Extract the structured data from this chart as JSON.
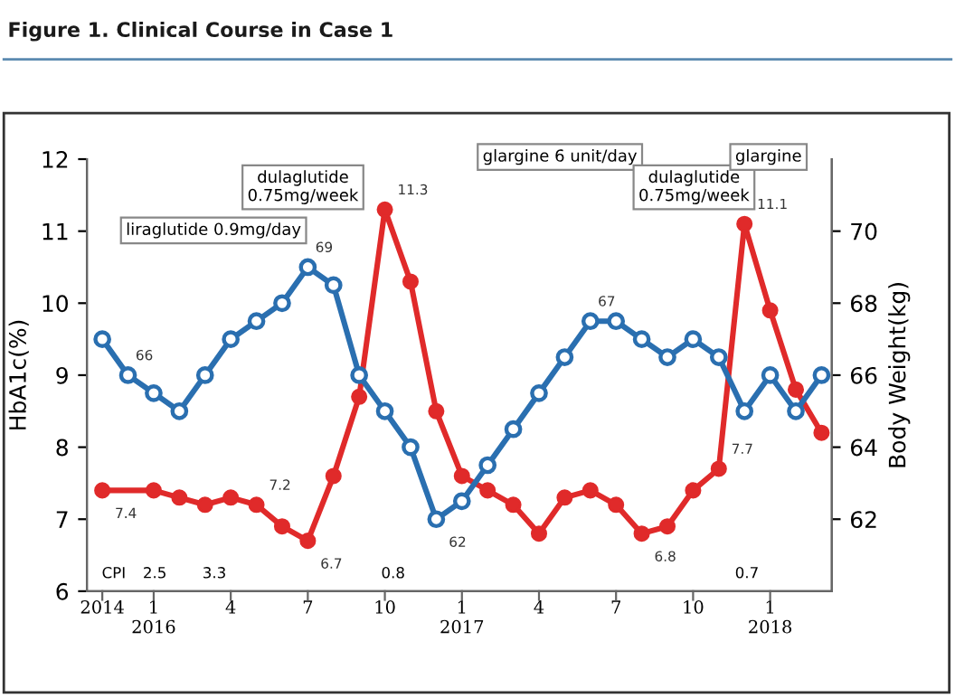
{
  "chart_data": {
    "type": "line",
    "title": "Figure 1. Clinical Course in Case 1",
    "ylabel": "HbA1c(%)",
    "y2label": "Body Weight(kg)",
    "categories": [
      "2014",
      null,
      "1\n2016",
      null,
      null,
      "4",
      null,
      null,
      "7",
      null,
      null,
      "10",
      null,
      null,
      "1\n2017",
      null,
      null,
      "4",
      null,
      null,
      "7",
      null,
      null,
      "10",
      null,
      null,
      "1\n2018",
      null,
      null
    ],
    "ylim": [
      6,
      12
    ],
    "y2lim": [
      60,
      72
    ],
    "yticks": [
      6,
      7,
      8,
      9,
      10,
      11,
      12
    ],
    "y2ticks": [
      62,
      64,
      66,
      68,
      70
    ],
    "marker": "circle",
    "line_style": "solid",
    "grid": false,
    "legend": false,
    "series": [
      {
        "color": "#e02a2a",
        "values": [
          7.4,
          null,
          7.4,
          7.3,
          7.2,
          7.3,
          7.2,
          6.9,
          6.7,
          7.6,
          8.7,
          11.3,
          10.3,
          8.5,
          7.6,
          7.4,
          7.2,
          6.8,
          7.3,
          7.4,
          7.2,
          6.8,
          6.9,
          7.4,
          7.7,
          11.1,
          9.9,
          8.8,
          8.2
        ],
        "value_labels": [
          "7.4",
          null,
          null,
          null,
          null,
          null,
          "7.2",
          null,
          "6.7",
          null,
          null,
          "11.3",
          null,
          null,
          null,
          null,
          null,
          null,
          null,
          null,
          null,
          "6.8",
          null,
          null,
          "7.7",
          "11.1",
          null,
          null,
          null
        ]
      },
      {
        "color": "#2a6fb0",
        "axis": "y2",
        "values": [
          67,
          66,
          65.5,
          65,
          66,
          67,
          67.5,
          68,
          69,
          68.5,
          66,
          65,
          64,
          62,
          62.5,
          63.5,
          64.5,
          65.5,
          66.5,
          67.5,
          67.5,
          67,
          66.5,
          67,
          66.5,
          65,
          66,
          65,
          66
        ],
        "value_labels": [
          null,
          "66",
          null,
          null,
          null,
          null,
          null,
          null,
          "69",
          null,
          null,
          null,
          null,
          "62",
          null,
          null,
          null,
          null,
          null,
          "67",
          null,
          null,
          null,
          null,
          null,
          null,
          null,
          null,
          null
        ]
      }
    ],
    "annotations": [
      "CPI",
      "2.5",
      "3.3",
      "0.8",
      "0.7",
      "liraglutide 0.9mg/day",
      "dulaglutide\n0.75mg/week",
      "glargine 6 unit/day",
      "dulaglutide\n0.75mg/week",
      "glargine"
    ]
  }
}
